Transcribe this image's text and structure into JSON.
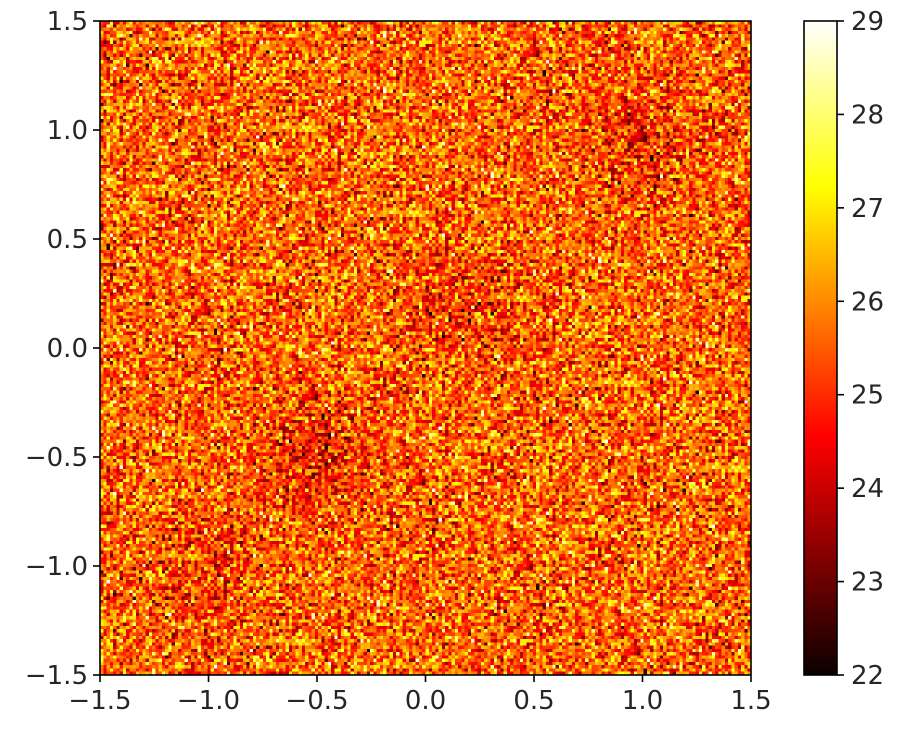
{
  "chart_data": {
    "type": "heatmap",
    "title": "",
    "xlabel": "",
    "ylabel": "",
    "xlim": [
      -1.5,
      1.5
    ],
    "ylim": [
      -1.5,
      1.5
    ],
    "grid_resolution": [
      200,
      200
    ],
    "x_ticks": [
      -1.5,
      -1.0,
      -0.5,
      0.0,
      0.5,
      1.0,
      1.5
    ],
    "y_ticks": [
      -1.5,
      -1.0,
      -0.5,
      0.0,
      0.5,
      1.0,
      1.5
    ],
    "x_tick_labels": [
      "−1.5",
      "−1.0",
      "−0.5",
      "0.0",
      "0.5",
      "1.0",
      "1.5"
    ],
    "y_tick_labels": [
      "−1.5",
      "−1.0",
      "−0.5",
      "0.0",
      "0.5",
      "1.0",
      "1.5"
    ],
    "colorbar": {
      "colormap": "hot",
      "vmin": 22,
      "vmax": 29,
      "ticks": [
        22,
        23,
        24,
        25,
        26,
        27,
        28,
        29
      ],
      "tick_labels": [
        "22",
        "23",
        "24",
        "25",
        "26",
        "27",
        "28",
        "29"
      ]
    },
    "value_summary": {
      "mean": 25.6,
      "std": 1.1,
      "darker_regions": [
        {
          "center": [
            -0.5,
            -0.5
          ],
          "mean": 24.8
        },
        {
          "center": [
            0.2,
            0.2
          ],
          "mean": 25.0
        },
        {
          "center": [
            1.0,
            1.0
          ],
          "mean": 24.9
        },
        {
          "center": [
            -1.0,
            -1.0
          ],
          "mean": 25.1
        }
      ]
    }
  }
}
